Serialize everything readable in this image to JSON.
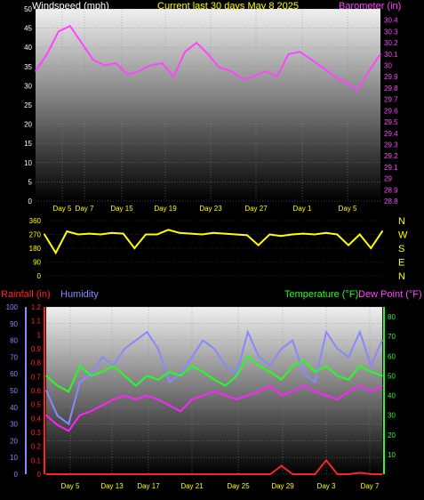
{
  "header": {
    "left": "Windspeed (mph)",
    "center": "Current last 30 days May 8 2025",
    "right": "Barometer (in)"
  },
  "mid_header": {
    "left": "Rainfall (in)",
    "left2": "Humidity",
    "right": "Temperature (°F)",
    "right2": "Dew Point (°F)"
  },
  "colors": {
    "wind": "#ffffff",
    "gust_fill": "#ccffcc",
    "wind_avg": "#22cc22",
    "barometer": "#ff44ff",
    "direction": "#ffff00",
    "rainfall": "#ff2222",
    "humidity": "#8888ff",
    "temperature": "#22ff22",
    "dewpoint": "#ff22ff",
    "title_yellow": "#ffff00"
  },
  "chart_data": [
    {
      "type": "line",
      "title": "Current last 30 days May 8 2025",
      "xlabel": "",
      "x_ticks": [
        "Day 5",
        "Day 7",
        "Day 15",
        "Day 19",
        "Day 23",
        "Day 27",
        "Day 1",
        "Day 5"
      ],
      "y_left_label": "Windspeed (mph)",
      "y_left_ticks": [
        "0",
        "5",
        "10",
        "15",
        "20",
        "25",
        "30",
        "35",
        "40",
        "45",
        "50"
      ],
      "ylim_left": [
        0,
        50
      ],
      "y_right_label": "Barometer (in)",
      "y_right_ticks": [
        "28.8",
        "28.9",
        "29",
        "29.1",
        "29.2",
        "29.3",
        "29.4",
        "29.5",
        "29.6",
        "29.7",
        "29.8",
        "29.9",
        "30",
        "30.1",
        "30.2",
        "30.3",
        "30.4"
      ],
      "ylim_right": [
        28.8,
        30.5
      ],
      "series": [
        {
          "name": "Barometer (in)",
          "axis": "right",
          "x": [
            0,
            1,
            2,
            3,
            4,
            5,
            6,
            7,
            8,
            9,
            10,
            11,
            12,
            13,
            14,
            15,
            16,
            17,
            18,
            19,
            20,
            21,
            22,
            23,
            24,
            25,
            26,
            27,
            28,
            29,
            30
          ],
          "values": [
            29.95,
            30.1,
            30.3,
            30.35,
            30.2,
            30.05,
            30.0,
            30.02,
            29.92,
            29.95,
            30.0,
            30.02,
            29.9,
            30.12,
            30.2,
            30.1,
            29.98,
            29.95,
            29.88,
            29.9,
            29.95,
            29.9,
            30.1,
            30.12,
            30.05,
            29.98,
            29.9,
            29.85,
            29.78,
            29.95,
            30.1
          ]
        }
      ]
    },
    {
      "type": "line",
      "x_ticks": [],
      "y_left_ticks": [
        "0",
        "90",
        "180",
        "270",
        "360"
      ],
      "ylim_left": [
        0,
        360
      ],
      "y_right_ticks": [
        "N",
        "W",
        "S",
        "E",
        "N"
      ],
      "series": [
        {
          "name": "Wind direction",
          "x": [
            0,
            1,
            2,
            3,
            4,
            5,
            6,
            7,
            8,
            9,
            10,
            11,
            12,
            13,
            14,
            15,
            16,
            17,
            18,
            19,
            20,
            21,
            22,
            23,
            24,
            25,
            26,
            27,
            28,
            29,
            30
          ],
          "values": [
            270,
            150,
            290,
            270,
            275,
            270,
            280,
            275,
            180,
            270,
            270,
            300,
            280,
            275,
            270,
            280,
            275,
            270,
            265,
            200,
            270,
            260,
            270,
            275,
            270,
            280,
            270,
            200,
            270,
            180,
            290
          ]
        }
      ]
    },
    {
      "type": "line",
      "x_ticks": [
        "Day 5",
        "Day 13",
        "Day 17",
        "Day 21",
        "Day 25",
        "Day 29",
        "Day 3",
        "Day 7"
      ],
      "y_left_label": "Rainfall (in)",
      "y_left_ticks": [
        "0",
        "0.1",
        "0.2",
        "0.3",
        "0.4",
        "0.5",
        "0.6",
        "0.7",
        "0.8",
        "0.9",
        "1",
        "1.1",
        "1.2"
      ],
      "ylim_left": [
        0,
        1.2
      ],
      "y_humidity_ticks": [
        "0",
        "10",
        "20",
        "30",
        "40",
        "50",
        "60",
        "70",
        "80",
        "90",
        "100"
      ],
      "ylim_humidity": [
        0,
        100
      ],
      "y_right_label": "Temperature (°F)",
      "y_right_ticks": [
        "10",
        "20",
        "30",
        "40",
        "50",
        "60",
        "70",
        "80"
      ],
      "ylim_right": [
        0,
        85
      ],
      "series": [
        {
          "name": "Rainfall (in)",
          "axis": "left",
          "x": [
            0,
            1,
            2,
            3,
            4,
            5,
            6,
            7,
            8,
            9,
            10,
            11,
            12,
            13,
            14,
            15,
            16,
            17,
            18,
            19,
            20,
            21,
            22,
            23,
            24,
            25,
            26,
            27,
            28,
            29,
            30
          ],
          "values": [
            0,
            0,
            0,
            0,
            0,
            0,
            0,
            0,
            0,
            0,
            0,
            0,
            0,
            0,
            0,
            0,
            0,
            0,
            0,
            0,
            0,
            0.06,
            0,
            0,
            0,
            0.1,
            0,
            0,
            0.01,
            0,
            0
          ]
        },
        {
          "name": "Humidity",
          "axis": "humidity",
          "x": [
            0,
            1,
            2,
            3,
            4,
            5,
            6,
            7,
            8,
            9,
            10,
            11,
            12,
            13,
            14,
            15,
            16,
            17,
            18,
            19,
            20,
            21,
            22,
            23,
            24,
            25,
            26,
            27,
            28,
            29,
            30
          ],
          "values": [
            50,
            35,
            30,
            55,
            60,
            70,
            65,
            75,
            80,
            85,
            75,
            55,
            60,
            70,
            80,
            75,
            65,
            60,
            85,
            70,
            65,
            75,
            80,
            60,
            55,
            85,
            75,
            70,
            85,
            65,
            80
          ]
        },
        {
          "name": "Temperature (°F)",
          "axis": "right",
          "x": [
            0,
            1,
            2,
            3,
            4,
            5,
            6,
            7,
            8,
            9,
            10,
            11,
            12,
            13,
            14,
            15,
            16,
            17,
            18,
            19,
            20,
            21,
            22,
            23,
            24,
            25,
            26,
            27,
            28,
            29,
            30
          ],
          "values": [
            50,
            45,
            42,
            55,
            50,
            52,
            55,
            50,
            45,
            50,
            48,
            52,
            50,
            55,
            52,
            48,
            45,
            50,
            60,
            55,
            52,
            48,
            55,
            58,
            52,
            55,
            50,
            48,
            55,
            52,
            50
          ]
        },
        {
          "name": "Dew Point (°F)",
          "axis": "right",
          "x": [
            0,
            1,
            2,
            3,
            4,
            5,
            6,
            7,
            8,
            9,
            10,
            11,
            12,
            13,
            14,
            15,
            16,
            17,
            18,
            19,
            20,
            21,
            22,
            23,
            24,
            25,
            26,
            27,
            28,
            29,
            30
          ],
          "values": [
            30,
            25,
            22,
            30,
            32,
            35,
            38,
            40,
            38,
            40,
            38,
            35,
            32,
            38,
            40,
            42,
            40,
            38,
            40,
            42,
            45,
            40,
            42,
            45,
            42,
            40,
            38,
            42,
            45,
            42,
            45
          ]
        }
      ]
    }
  ]
}
